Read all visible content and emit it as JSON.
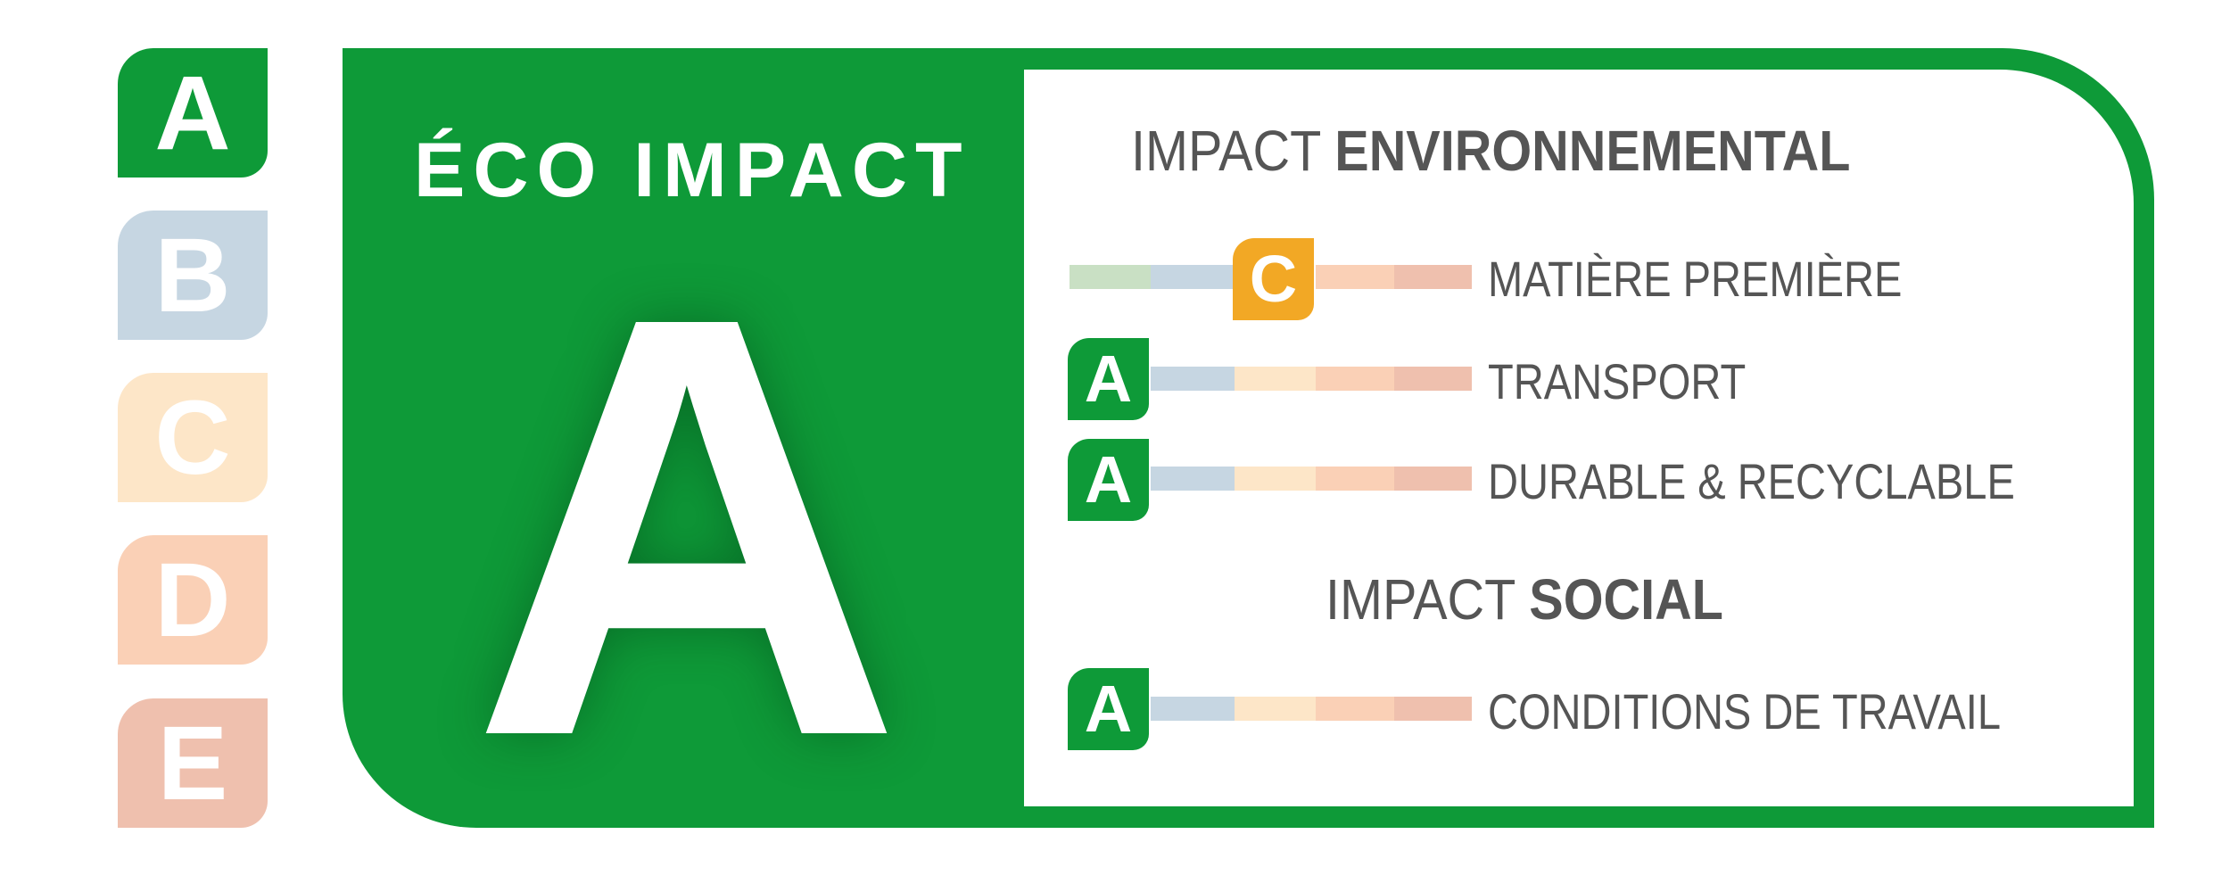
{
  "scale": {
    "grades": [
      {
        "letter": "A",
        "color": "#0e9a38"
      },
      {
        "letter": "B",
        "color": "#c6d6e2"
      },
      {
        "letter": "C",
        "color": "#fde6c8"
      },
      {
        "letter": "D",
        "color": "#fad0b6"
      },
      {
        "letter": "E",
        "color": "#efc0ae"
      }
    ]
  },
  "panel": {
    "title": "ÉCO IMPACT",
    "overall_grade": "A",
    "accent_color": "#0e9a38"
  },
  "environmental": {
    "heading_light": "IMPACT",
    "heading_bold": "ENVIRONNEMENTAL",
    "rows": [
      {
        "label": "MATIÈRE PREMIÈRE",
        "grade": "C",
        "grade_color": "#f2a825"
      },
      {
        "label": "TRANSPORT",
        "grade": "A",
        "grade_color": "#0e9a38"
      },
      {
        "label": "DURABLE & RECYCLABLE",
        "grade": "A",
        "grade_color": "#0e9a38"
      }
    ]
  },
  "social": {
    "heading_light": "IMPACT",
    "heading_bold": "SOCIAL",
    "rows": [
      {
        "label": "CONDITIONS DE TRAVAIL",
        "grade": "A",
        "grade_color": "#0e9a38"
      }
    ]
  },
  "bar_colors": [
    "#c9e0c4",
    "#c6d6e2",
    "#fde6c8",
    "#fad0b6",
    "#efc0ae"
  ]
}
